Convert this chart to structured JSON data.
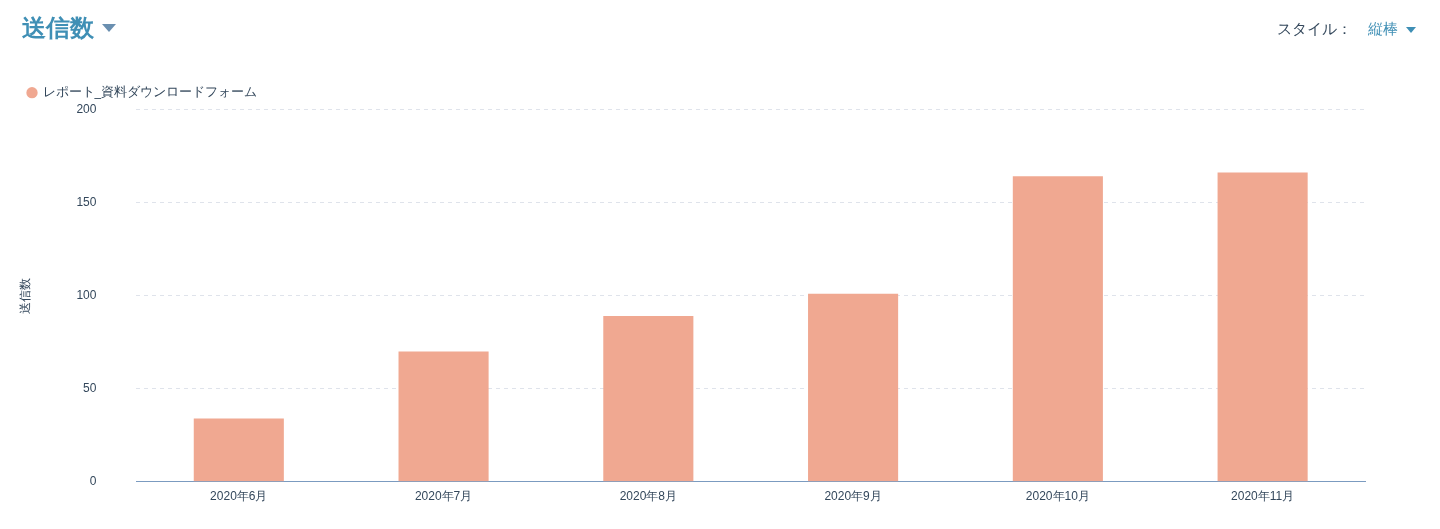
{
  "chart_data": {
    "type": "bar",
    "title": "送信数",
    "ylabel": "送信数",
    "annotations": [
      "スタイル：",
      "縦棒"
    ],
    "categories": [
      "2020年6月",
      "2020年7月",
      "2020年8月",
      "2020年9月",
      "2020年10月",
      "2020年11月"
    ],
    "series": [
      {
        "name": "レポート_資料ダウンロードフォーム",
        "color": "#f0a891",
        "values": [
          34,
          70,
          89,
          101,
          164,
          166
        ]
      }
    ],
    "ylim": [
      0,
      200
    ],
    "yticks": [
      0,
      50,
      100,
      150,
      200
    ],
    "grid": "y",
    "legend": "top left"
  }
}
